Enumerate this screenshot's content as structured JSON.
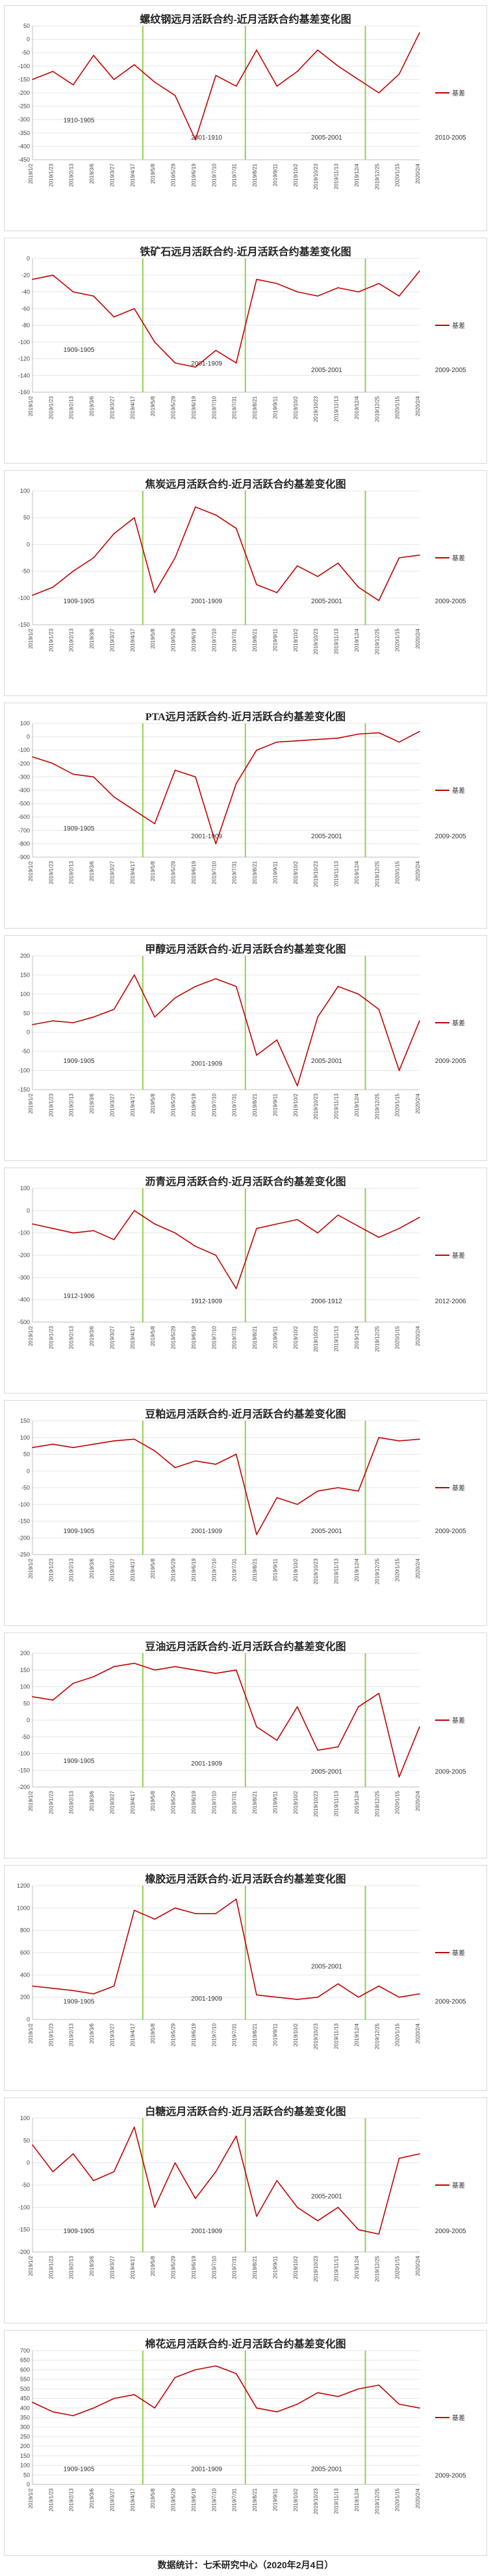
{
  "footer": "数据统计：七禾研究中心（2020年2月4日）",
  "colors": {
    "series": "#c00000",
    "divider": "#92d050",
    "grid": "#e6e6e6"
  },
  "chart_data": [
    {
      "type": "line",
      "title": "螺纹钢远月活跃合约-近月活跃合约基差变化图",
      "legend": "基差",
      "legend_position": "right",
      "ylim": [
        -450,
        50
      ],
      "yticks": [
        50,
        0,
        -50,
        -100,
        -150,
        -200,
        -250,
        -300,
        -350,
        -400,
        -450
      ],
      "dividers": [
        0.285,
        0.55,
        0.86
      ],
      "periods": [
        {
          "label": "1910-1905",
          "at": 0.12,
          "level": 0.72
        },
        {
          "label": "2001-1910",
          "at": 0.45,
          "level": 0.85
        },
        {
          "label": "2005-2001",
          "at": 0.76,
          "level": 0.85
        },
        {
          "label": "2010-2005",
          "at": 1.08,
          "level": 0.85
        }
      ],
      "x": [
        "2019/1/2",
        "2019/1/23",
        "2019/2/13",
        "2019/3/6",
        "2019/3/27",
        "2019/4/17",
        "2019/5/8",
        "2019/5/29",
        "2019/6/19",
        "2019/7/10",
        "2019/7/31",
        "2019/8/21",
        "2019/9/11",
        "2019/10/2",
        "2019/10/23",
        "2019/11/13",
        "2019/12/4",
        "2019/12/25",
        "2020/1/15",
        "2020/2/4"
      ],
      "y": [
        -150,
        -120,
        -170,
        -60,
        -150,
        -95,
        -160,
        -210,
        -375,
        -135,
        -175,
        -40,
        -175,
        -120,
        -40,
        -100,
        -150,
        -200,
        -130,
        25
      ]
    },
    {
      "type": "line",
      "title": "铁矿石远月活跃合约-近月活跃合约基差变化图",
      "legend": "基差",
      "legend_position": "right",
      "ylim": [
        -160,
        0
      ],
      "yticks": [
        0,
        -20,
        -40,
        -60,
        -80,
        -100,
        -120,
        -140,
        -160
      ],
      "dividers": [
        0.285,
        0.55,
        0.86
      ],
      "periods": [
        {
          "label": "1909-1905",
          "at": 0.12,
          "level": 0.7
        },
        {
          "label": "2001-1909",
          "at": 0.45,
          "level": 0.8
        },
        {
          "label": "2005-2001",
          "at": 0.76,
          "level": 0.85
        },
        {
          "label": "2009-2005",
          "at": 1.08,
          "level": 0.85
        }
      ],
      "x": [
        "2019/1/2",
        "2019/1/23",
        "2019/2/13",
        "2019/3/6",
        "2019/3/27",
        "2019/4/17",
        "2019/5/8",
        "2019/5/29",
        "2019/6/19",
        "2019/7/10",
        "2019/7/31",
        "2019/8/21",
        "2019/9/11",
        "2019/10/2",
        "2019/10/23",
        "2019/11/13",
        "2019/12/4",
        "2019/12/25",
        "2020/1/15",
        "2020/2/4"
      ],
      "y": [
        -25,
        -20,
        -40,
        -45,
        -70,
        -60,
        -100,
        -125,
        -130,
        -110,
        -125,
        -25,
        -30,
        -40,
        -45,
        -35,
        -40,
        -30,
        -45,
        -15
      ]
    },
    {
      "type": "line",
      "title": "焦炭远月活跃合约-近月活跃合约基差变化图",
      "legend": "基差",
      "legend_position": "right",
      "ylim": [
        -150,
        100
      ],
      "yticks": [
        100,
        50,
        0,
        -50,
        -100,
        -150
      ],
      "dividers": [
        0.285,
        0.55,
        0.86
      ],
      "periods": [
        {
          "label": "1909-1905",
          "at": 0.12,
          "level": 0.84
        },
        {
          "label": "2001-1909",
          "at": 0.45,
          "level": 0.84
        },
        {
          "label": "2005-2001",
          "at": 0.76,
          "level": 0.84
        },
        {
          "label": "2009-2005",
          "at": 1.08,
          "level": 0.84
        }
      ],
      "x": [
        "2019/1/2",
        "2019/1/23",
        "2019/2/13",
        "2019/3/6",
        "2019/3/27",
        "2019/4/17",
        "2019/5/8",
        "2019/5/29",
        "2019/6/19",
        "2019/7/10",
        "2019/7/31",
        "2019/8/21",
        "2019/9/11",
        "2019/10/2",
        "2019/10/23",
        "2019/11/13",
        "2019/12/4",
        "2019/12/25",
        "2020/1/15",
        "2020/2/4"
      ],
      "y": [
        -95,
        -80,
        -50,
        -25,
        20,
        50,
        -90,
        -25,
        70,
        55,
        30,
        -75,
        -90,
        -40,
        -60,
        -35,
        -80,
        -105,
        -25,
        -20
      ]
    },
    {
      "type": "line",
      "title": "PTA远月活跃合约-近月活跃合约基差变化图",
      "legend": "基差",
      "legend_position": "right",
      "ylim": [
        -900,
        100
      ],
      "yticks": [
        100,
        0,
        -100,
        -200,
        -300,
        -400,
        -500,
        -600,
        -700,
        -800,
        -900
      ],
      "dividers": [
        0.285,
        0.55,
        0.86
      ],
      "periods": [
        {
          "label": "1909-1905",
          "at": 0.12,
          "level": 0.8
        },
        {
          "label": "2001-1909",
          "at": 0.45,
          "level": 0.86
        },
        {
          "label": "2005-2001",
          "at": 0.76,
          "level": 0.86
        },
        {
          "label": "2009-2005",
          "at": 1.08,
          "level": 0.86
        }
      ],
      "x": [
        "2019/1/2",
        "2019/1/23",
        "2019/2/13",
        "2019/3/6",
        "2019/3/27",
        "2019/4/17",
        "2019/5/8",
        "2019/5/29",
        "2019/6/19",
        "2019/7/10",
        "2019/7/31",
        "2019/8/21",
        "2019/9/11",
        "2019/10/2",
        "2019/10/23",
        "2019/11/13",
        "2019/12/4",
        "2019/12/25",
        "2020/1/15",
        "2020/2/4"
      ],
      "y": [
        -150,
        -200,
        -280,
        -300,
        -450,
        -550,
        -650,
        -250,
        -300,
        -800,
        -350,
        -100,
        -40,
        -30,
        -20,
        -10,
        20,
        30,
        -40,
        40
      ]
    },
    {
      "type": "line",
      "title": "甲醇远月活跃合约-近月活跃合约基差变化图",
      "legend": "基差",
      "legend_position": "right",
      "ylim": [
        -150,
        200
      ],
      "yticks": [
        200,
        150,
        100,
        50,
        0,
        -50,
        -100,
        -150
      ],
      "dividers": [
        0.285,
        0.55,
        0.86
      ],
      "periods": [
        {
          "label": "1909-1905",
          "at": 0.12,
          "level": 0.8
        },
        {
          "label": "2001-1909",
          "at": 0.45,
          "level": 0.82
        },
        {
          "label": "2005-2001",
          "at": 0.76,
          "level": 0.8
        },
        {
          "label": "2009-2005",
          "at": 1.08,
          "level": 0.8
        }
      ],
      "x": [
        "2019/1/2",
        "2019/1/23",
        "2019/2/13",
        "2019/3/6",
        "2019/3/27",
        "2019/4/17",
        "2019/5/8",
        "2019/5/29",
        "2019/6/19",
        "2019/7/10",
        "2019/7/31",
        "2019/8/21",
        "2019/9/11",
        "2019/10/2",
        "2019/10/23",
        "2019/11/13",
        "2019/12/4",
        "2019/12/25",
        "2020/1/15",
        "2020/2/4"
      ],
      "y": [
        20,
        30,
        25,
        40,
        60,
        150,
        40,
        90,
        120,
        140,
        120,
        -60,
        -20,
        -140,
        40,
        120,
        100,
        60,
        -100,
        30
      ]
    },
    {
      "type": "line",
      "title": "沥青远月活跃合约-近月活跃合约基差变化图",
      "legend": "基差",
      "legend_position": "right",
      "ylim": [
        -500,
        100
      ],
      "yticks": [
        100,
        0,
        -100,
        -200,
        -300,
        -400,
        -500
      ],
      "dividers": [
        0.285,
        0.55,
        0.86
      ],
      "periods": [
        {
          "label": "1912-1906",
          "at": 0.12,
          "level": 0.82
        },
        {
          "label": "1912-1909",
          "at": 0.45,
          "level": 0.86
        },
        {
          "label": "2006-1912",
          "at": 0.76,
          "level": 0.86
        },
        {
          "label": "2012-2006",
          "at": 1.08,
          "level": 0.86
        }
      ],
      "x": [
        "2019/1/2",
        "2019/1/23",
        "2019/2/13",
        "2019/3/6",
        "2019/3/27",
        "2019/4/17",
        "2019/5/8",
        "2019/5/29",
        "2019/6/19",
        "2019/7/10",
        "2019/7/31",
        "2019/8/21",
        "2019/9/11",
        "2019/10/2",
        "2019/10/23",
        "2019/11/13",
        "2019/12/4",
        "2019/12/25",
        "2020/1/15",
        "2020/2/4"
      ],
      "y": [
        -60,
        -80,
        -100,
        -90,
        -130,
        0,
        -60,
        -100,
        -160,
        -200,
        -350,
        -80,
        -60,
        -40,
        -100,
        -20,
        -70,
        -120,
        -80,
        -30
      ]
    },
    {
      "type": "line",
      "title": "豆粕远月活跃合约-近月活跃合约基差变化图",
      "legend": "基差",
      "legend_position": "right",
      "ylim": [
        -250,
        150
      ],
      "yticks": [
        150,
        100,
        50,
        0,
        -50,
        -100,
        -150,
        -200,
        -250
      ],
      "dividers": [
        0.285,
        0.55,
        0.86
      ],
      "periods": [
        {
          "label": "1909-1905",
          "at": 0.12,
          "level": 0.84
        },
        {
          "label": "2001-1909",
          "at": 0.45,
          "level": 0.84
        },
        {
          "label": "2005-2001",
          "at": 0.76,
          "level": 0.84
        },
        {
          "label": "2009-2005",
          "at": 1.08,
          "level": 0.84
        }
      ],
      "x": [
        "2019/1/2",
        "2019/1/23",
        "2019/2/13",
        "2019/3/6",
        "2019/3/27",
        "2019/4/17",
        "2019/5/8",
        "2019/5/29",
        "2019/6/19",
        "2019/7/10",
        "2019/7/31",
        "2019/8/21",
        "2019/9/11",
        "2019/10/2",
        "2019/10/23",
        "2019/11/13",
        "2019/12/4",
        "2019/12/25",
        "2020/1/15",
        "2020/2/4"
      ],
      "y": [
        70,
        80,
        70,
        80,
        90,
        95,
        60,
        10,
        30,
        20,
        50,
        -190,
        -80,
        -100,
        -60,
        -50,
        -60,
        100,
        90,
        95
      ]
    },
    {
      "type": "line",
      "title": "豆油远月活跃合约-近月活跃合约基差变化图",
      "legend": "基差",
      "legend_position": "right",
      "ylim": [
        -200,
        200
      ],
      "yticks": [
        200,
        150,
        100,
        50,
        0,
        -50,
        -100,
        -150,
        -200
      ],
      "dividers": [
        0.285,
        0.55,
        0.86
      ],
      "periods": [
        {
          "label": "1909-1905",
          "at": 0.12,
          "level": 0.82
        },
        {
          "label": "2001-1909",
          "at": 0.45,
          "level": 0.84
        },
        {
          "label": "2005-2001",
          "at": 0.76,
          "level": 0.9
        },
        {
          "label": "2009-2005",
          "at": 1.08,
          "level": 0.9
        }
      ],
      "x": [
        "2019/1/2",
        "2019/1/23",
        "2019/2/13",
        "2019/3/6",
        "2019/3/27",
        "2019/4/17",
        "2019/5/8",
        "2019/5/29",
        "2019/6/19",
        "2019/7/10",
        "2019/7/31",
        "2019/8/21",
        "2019/9/11",
        "2019/10/2",
        "2019/10/23",
        "2019/11/13",
        "2019/12/4",
        "2019/12/25",
        "2020/1/15",
        "2020/2/4"
      ],
      "y": [
        70,
        60,
        110,
        130,
        160,
        170,
        150,
        160,
        150,
        140,
        150,
        -20,
        -60,
        40,
        -90,
        -80,
        40,
        80,
        -170,
        -20
      ]
    },
    {
      "type": "line",
      "title": "橡胶远月活跃合约-近月活跃合约基差变化图",
      "legend": "基差",
      "legend_position": "right",
      "ylim": [
        0,
        1200
      ],
      "yticks": [
        1200,
        1000,
        800,
        600,
        400,
        200,
        0
      ],
      "dividers": [
        0.285,
        0.55,
        0.86
      ],
      "periods": [
        {
          "label": "1909-1905",
          "at": 0.12,
          "level": 0.88
        },
        {
          "label": "2001-1909",
          "at": 0.45,
          "level": 0.86
        },
        {
          "label": "2005-2001",
          "at": 0.76,
          "level": 0.62
        },
        {
          "label": "2009-2005",
          "at": 1.08,
          "level": 0.88
        }
      ],
      "x": [
        "2019/1/2",
        "2019/1/23",
        "2019/2/13",
        "2019/3/6",
        "2019/3/27",
        "2019/4/17",
        "2019/5/8",
        "2019/5/29",
        "2019/6/19",
        "2019/7/10",
        "2019/7/31",
        "2019/8/21",
        "2019/9/11",
        "2019/10/2",
        "2019/10/23",
        "2019/11/13",
        "2019/12/4",
        "2019/12/25",
        "2020/1/15",
        "2020/2/4"
      ],
      "y": [
        300,
        280,
        260,
        230,
        300,
        980,
        900,
        1000,
        950,
        950,
        1080,
        220,
        200,
        180,
        200,
        320,
        200,
        300,
        200,
        230
      ]
    },
    {
      "type": "line",
      "title": "白糖远月活跃合约-近月活跃合约基差变化图",
      "legend": "基差",
      "legend_position": "right",
      "ylim": [
        -200,
        100
      ],
      "yticks": [
        100,
        50,
        0,
        -50,
        -100,
        -150,
        -200
      ],
      "dividers": [
        0.285,
        0.55,
        0.86
      ],
      "periods": [
        {
          "label": "1909-1905",
          "at": 0.12,
          "level": 0.86
        },
        {
          "label": "2001-1909",
          "at": 0.45,
          "level": 0.86
        },
        {
          "label": "2005-2001",
          "at": 0.76,
          "level": 0.6
        },
        {
          "label": "2009-2005",
          "at": 1.08,
          "level": 0.86
        }
      ],
      "x": [
        "2019/1/2",
        "2019/1/23",
        "2019/2/13",
        "2019/3/6",
        "2019/3/27",
        "2019/4/17",
        "2019/5/8",
        "2019/5/29",
        "2019/6/19",
        "2019/7/10",
        "2019/7/31",
        "2019/8/21",
        "2019/9/11",
        "2019/10/2",
        "2019/10/23",
        "2019/11/13",
        "2019/12/4",
        "2019/12/25",
        "2020/1/15",
        "2020/2/4"
      ],
      "y": [
        40,
        -20,
        20,
        -40,
        -20,
        80,
        -100,
        0,
        -80,
        -20,
        60,
        -120,
        -40,
        -100,
        -130,
        -100,
        -150,
        -160,
        10,
        20
      ]
    },
    {
      "type": "line",
      "title": "棉花远月活跃合约-近月活跃合约基差变化图",
      "legend": "基差",
      "legend_position": "right",
      "ylim": [
        0,
        700
      ],
      "yticks": [
        700,
        650,
        600,
        550,
        500,
        450,
        400,
        350,
        300,
        250,
        200,
        150,
        100,
        50,
        0
      ],
      "dividers": [
        0.285,
        0.55,
        0.86
      ],
      "periods": [
        {
          "label": "1909-1905",
          "at": 0.12,
          "level": 0.9
        },
        {
          "label": "2001-1909",
          "at": 0.45,
          "level": 0.9
        },
        {
          "label": "2005-2001",
          "at": 0.76,
          "level": 0.9
        },
        {
          "label": "2009-2005",
          "at": 1.08,
          "level": 0.95
        }
      ],
      "x": [
        "2019/1/2",
        "2019/1/23",
        "2019/2/13",
        "2019/3/6",
        "2019/3/27",
        "2019/4/17",
        "2019/5/8",
        "2019/5/29",
        "2019/6/19",
        "2019/7/10",
        "2019/7/31",
        "2019/8/21",
        "2019/9/11",
        "2019/10/2",
        "2019/10/23",
        "2019/11/13",
        "2019/12/4",
        "2019/12/25",
        "2020/1/15",
        "2020/2/4"
      ],
      "y": [
        430,
        380,
        360,
        400,
        450,
        470,
        400,
        560,
        600,
        620,
        580,
        400,
        380,
        420,
        480,
        460,
        500,
        520,
        420,
        400
      ]
    }
  ]
}
